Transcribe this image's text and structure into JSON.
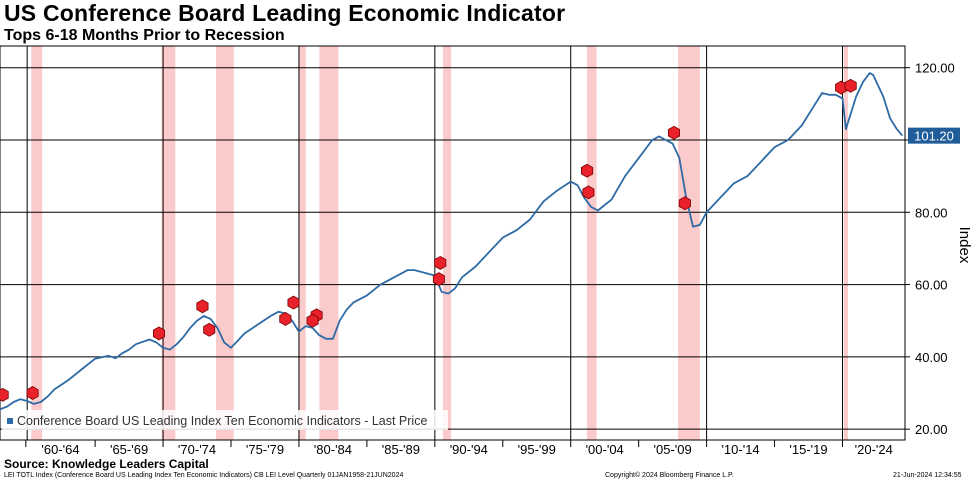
{
  "title": "US Conference Board Leading Economic Indicator",
  "subtitle": "Tops 6-18 Months Prior to Recession",
  "source": "Source: Knowledge Leaders Capital",
  "footer": {
    "left": "LEI TOTL Index (Conference Board US Leading Index Ten Economic Indicators) CB LEI Level  Quarterly 01JAN1958-21JUN2024",
    "middle": "Copyright© 2024 Bloomberg Finance L.P.",
    "right": "21-Jun-2024 12:34:55"
  },
  "colors": {
    "line": "#2e6aa6",
    "recession": "#fbcaca",
    "marker": "#e8212a",
    "label_bg": "#1f5c99"
  },
  "marker_icon": "rec-hexagon-icon",
  "chart_data": {
    "type": "line",
    "title": "US Conference Board Leading Economic Indicator",
    "subtitle": "Tops 6-18 Months Prior to Recession",
    "xlabel": "",
    "ylabel": "Index",
    "xlim": [
      1958.0,
      2024.6
    ],
    "ylim": [
      17,
      126
    ],
    "y_ticks": [
      20,
      40,
      60,
      80,
      100,
      120
    ],
    "y_tick_labels": [
      "20.00",
      "40.00",
      "60.00",
      "80.00",
      "",
      "120.00"
    ],
    "x_tick_labels": [
      {
        "label": "'60-'64",
        "from": 1959.9,
        "to": 1965.0
      },
      {
        "label": "'65-'69",
        "from": 1965.0,
        "to": 1970.0
      },
      {
        "label": "'70-'74",
        "from": 1970.0,
        "to": 1975.0
      },
      {
        "label": "'75-'79",
        "from": 1975.0,
        "to": 1980.0
      },
      {
        "label": "'80-'84",
        "from": 1980.0,
        "to": 1985.0
      },
      {
        "label": "'85-'89",
        "from": 1985.0,
        "to": 1990.0
      },
      {
        "label": "'90-'94",
        "from": 1990.0,
        "to": 1995.0
      },
      {
        "label": "'95-'99",
        "from": 1995.0,
        "to": 2000.0
      },
      {
        "label": "'00-'04",
        "from": 2000.0,
        "to": 2005.0
      },
      {
        "label": "'05-'09",
        "from": 2005.0,
        "to": 2010.0
      },
      {
        "label": "'10-'14",
        "from": 2010.0,
        "to": 2015.0
      },
      {
        "label": "'15-'19",
        "from": 2015.0,
        "to": 2020.0
      },
      {
        "label": "'20-'24",
        "from": 2020.0,
        "to": 2024.6
      }
    ],
    "decade_lines": [
      1960,
      1970,
      1980,
      1990,
      2000,
      2010,
      2020
    ],
    "grid": true,
    "legend": "bottom-left",
    "legend_label": "Conference Board US Leading Index Ten Economic Indicators - Last Price",
    "last_price_label": "101.20",
    "last_price": 101.2,
    "recessions": [
      [
        1960.3,
        1961.1
      ],
      [
        1969.9,
        1970.9
      ],
      [
        1973.9,
        1975.2
      ],
      [
        1980.0,
        1980.5
      ],
      [
        1981.5,
        1982.9
      ],
      [
        1990.6,
        1991.2
      ],
      [
        2001.2,
        2001.9
      ],
      [
        2007.9,
        2009.5
      ],
      [
        2020.1,
        2020.4
      ]
    ],
    "rec_markers": [
      {
        "x": 1958.2,
        "y": 29.5
      },
      {
        "x": 1960.4,
        "y": 30.0
      },
      {
        "x": 1969.7,
        "y": 46.5
      },
      {
        "x": 1972.9,
        "y": 54.0
      },
      {
        "x": 1973.4,
        "y": 47.5
      },
      {
        "x": 1979.6,
        "y": 55.0
      },
      {
        "x": 1979.0,
        "y": 50.5
      },
      {
        "x": 1981.3,
        "y": 51.5
      },
      {
        "x": 1981.0,
        "y": 50.0
      },
      {
        "x": 1990.4,
        "y": 66.0
      },
      {
        "x": 1990.3,
        "y": 61.5
      },
      {
        "x": 2001.2,
        "y": 91.5
      },
      {
        "x": 2001.3,
        "y": 85.5
      },
      {
        "x": 2007.6,
        "y": 102.0
      },
      {
        "x": 2008.4,
        "y": 82.5
      },
      {
        "x": 2019.9,
        "y": 114.5
      },
      {
        "x": 2020.6,
        "y": 115.0
      }
    ],
    "series": [
      {
        "name": "Conference Board US Leading Index Ten Economic Indicators",
        "x": [
          1958.0,
          1958.5,
          1959.0,
          1959.5,
          1960.0,
          1960.5,
          1961.0,
          1961.5,
          1962.0,
          1963.0,
          1964.0,
          1965.0,
          1966.0,
          1966.5,
          1967.0,
          1967.5,
          1968.0,
          1969.0,
          1969.5,
          1970.0,
          1970.5,
          1971.0,
          1971.5,
          1972.0,
          1972.5,
          1973.0,
          1973.5,
          1974.0,
          1974.5,
          1975.0,
          1975.5,
          1976.0,
          1977.0,
          1978.0,
          1978.5,
          1979.0,
          1979.5,
          1980.0,
          1980.5,
          1981.0,
          1981.5,
          1982.0,
          1982.5,
          1983.0,
          1983.5,
          1984.0,
          1985.0,
          1986.0,
          1987.0,
          1988.0,
          1988.5,
          1989.0,
          1989.5,
          1990.0,
          1990.5,
          1991.0,
          1991.5,
          1992.0,
          1993.0,
          1994.0,
          1995.0,
          1996.0,
          1997.0,
          1998.0,
          1999.0,
          2000.0,
          2000.5,
          2001.0,
          2001.5,
          2002.0,
          2002.5,
          2003.0,
          2004.0,
          2005.0,
          2006.0,
          2006.5,
          2007.0,
          2007.5,
          2008.0,
          2008.5,
          2009.0,
          2009.5,
          2010.0,
          2011.0,
          2012.0,
          2013.0,
          2014.0,
          2015.0,
          2016.0,
          2017.0,
          2018.0,
          2018.5,
          2019.0,
          2019.5,
          2020.0,
          2020.25,
          2020.5,
          2021.0,
          2021.5,
          2022.0,
          2022.25,
          2022.5,
          2023.0,
          2023.5,
          2024.0,
          2024.4
        ],
        "values": [
          25.5,
          26.2,
          27.5,
          28.3,
          27.8,
          27.0,
          27.5,
          29.0,
          31.0,
          33.5,
          36.5,
          39.5,
          40.3,
          39.6,
          41.0,
          42.0,
          43.5,
          44.8,
          44.0,
          42.5,
          42.0,
          43.5,
          45.5,
          48.0,
          50.0,
          51.3,
          50.5,
          48.0,
          44.0,
          42.5,
          44.5,
          46.5,
          49.0,
          51.5,
          52.5,
          52.0,
          50.0,
          47.0,
          48.5,
          48.0,
          46.0,
          45.0,
          45.0,
          50.0,
          53.0,
          55.0,
          57.0,
          60.0,
          62.0,
          64.0,
          64.0,
          63.5,
          63.0,
          62.5,
          58.0,
          57.5,
          59.0,
          62.0,
          65.0,
          69.0,
          73.0,
          75.0,
          78.0,
          83.0,
          86.0,
          88.5,
          87.5,
          84.0,
          81.5,
          80.5,
          82.0,
          83.5,
          90.0,
          95.0,
          100.0,
          101.0,
          100.0,
          99.0,
          95.0,
          84.0,
          76.0,
          76.5,
          80.0,
          84.0,
          88.0,
          90.0,
          94.0,
          98.0,
          100.0,
          104.0,
          110.0,
          113.0,
          112.5,
          112.5,
          111.5,
          103.0,
          106.0,
          112.0,
          116.0,
          118.5,
          118.0,
          116.0,
          112.0,
          106.0,
          103.0,
          101.2
        ]
      }
    ]
  }
}
